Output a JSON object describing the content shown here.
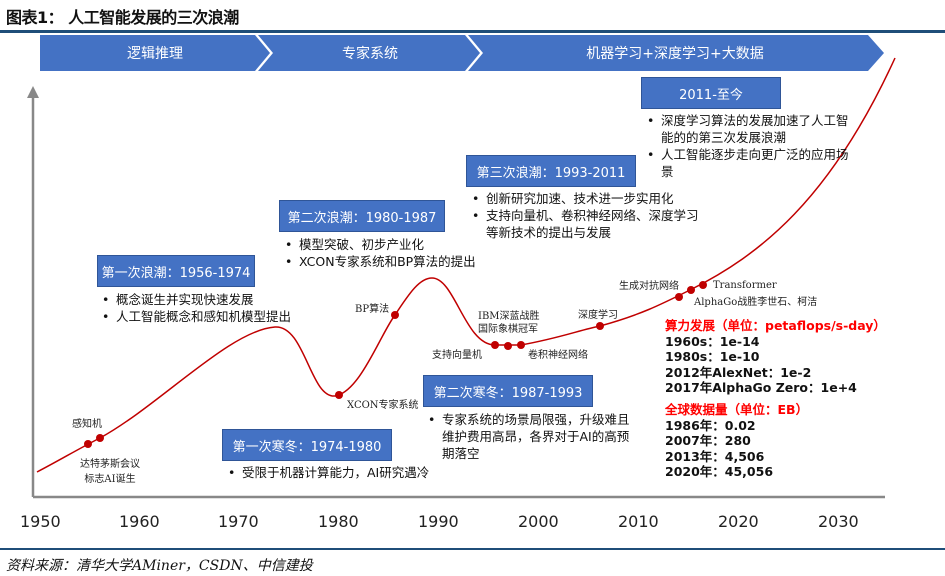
{
  "title": "图表1：  人工智能发展的三次浪潮",
  "phases": [
    "逻辑推理",
    "专家系统",
    "机器学习+深度学习+大数据"
  ],
  "waves": [
    {
      "label": "第一次浪潮：1956-1974",
      "bullets": [
        "概念诞生并实现快速发展",
        "人工智能概念和感知机模型提出"
      ]
    },
    {
      "label": "第二次浪潮：1980-1987",
      "bullets": [
        "模型突破、初步产业化",
        "XCON专家系统和BP算法的提出"
      ]
    },
    {
      "label": "第三次浪潮：1993-2011",
      "bullets": [
        "创新研究加速、技术进一步实用化",
        "支持向量机、卷积神经网络、深度学习等新技术的提出与发展"
      ]
    },
    {
      "label": "2011-至今",
      "bullets": [
        "深度学习算法的发展加速了人工智能的的第三次发展浪潮",
        "人工智能逐步走向更广泛的应用场景"
      ]
    }
  ],
  "winters": [
    {
      "label": "第一次寒冬：1974-1980",
      "bullets": [
        "受限于机器计算能力，AI研究遇冷"
      ]
    },
    {
      "label": "第二次寒冬：1987-1993",
      "bullets": [
        "专家系统的场景局限强，升级难且维护费用高昂，各界对于AI的高预期落空"
      ]
    }
  ],
  "events": {
    "perceptron": "感知机",
    "dartmouth": "达特茅斯会议\n标志AI诞生",
    "xcon": "XCON专家系统",
    "bp": "BP算法",
    "svm": "支持向量机",
    "ibm": "IBM深蓝战胜\n国际象棋冠军",
    "cnn": "卷积神经网络",
    "dl": "深度学习",
    "gan": "生成对抗网络",
    "transformer": "Transformer",
    "alphago": "AlphaGo战胜李世石、柯洁"
  },
  "compute": {
    "heading": "算力发展（单位：petaflops/s-day）",
    "rows": [
      "1960s：1e-14",
      "1980s：1e-10",
      "2012年AlexNet：1e-2",
      "2017年AlphaGo Zero：1e+4"
    ]
  },
  "datavol": {
    "heading": "全球数据量（单位：EB）",
    "rows": [
      "1986年：0.02",
      "2007年：280",
      "2013年：4,506",
      "2020年：45,056"
    ]
  },
  "axis_ticks": [
    "1950",
    "1960",
    "1970",
    "1980",
    "1990",
    "2000",
    "2010",
    "2020",
    "2030"
  ],
  "source": "资料来源：清华大学AMiner，CSDN、中信建投",
  "colors": {
    "box": "#4472c4",
    "curve": "#c00000",
    "highlight": "#ff0000",
    "rule": "#1f4e79"
  }
}
